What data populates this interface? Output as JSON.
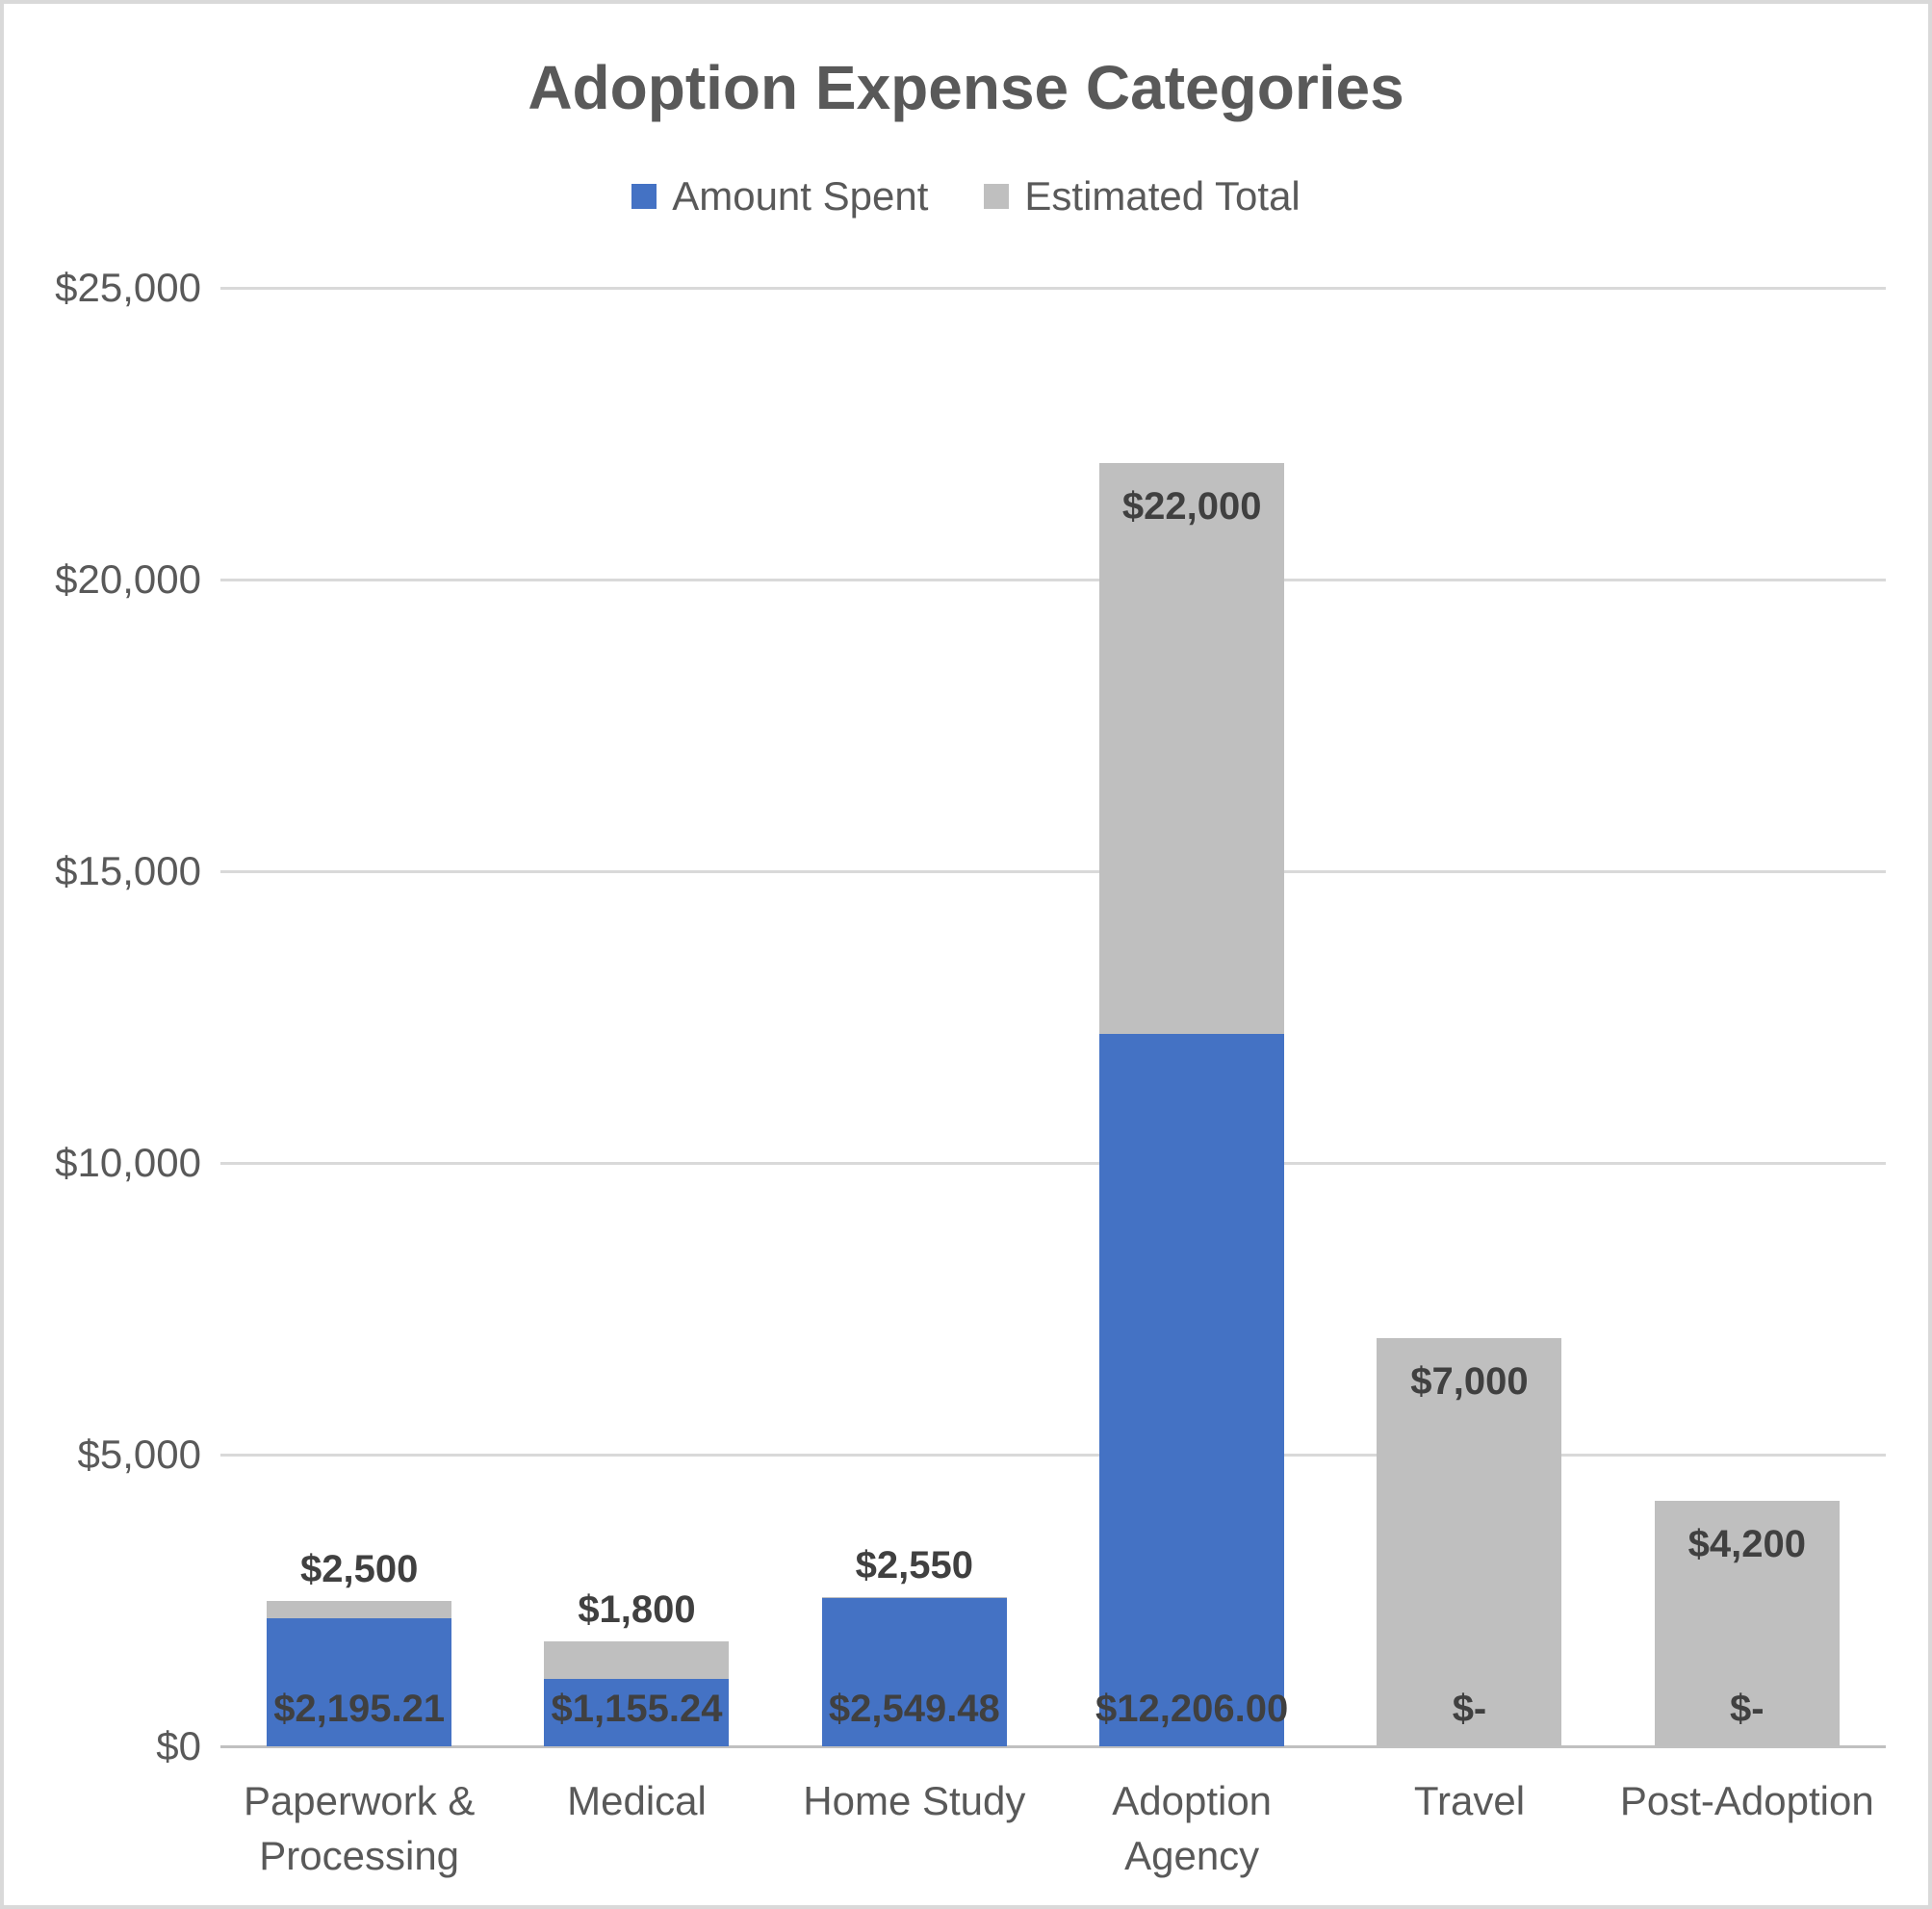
{
  "chart_data": {
    "type": "bar",
    "variant": "overlapped-columns",
    "title": "Adoption Expense Categories",
    "categories": [
      "Paperwork & Processing",
      "Medical",
      "Home Study",
      "Adoption Agency",
      "Travel",
      "Post-Adoption"
    ],
    "series": [
      {
        "name": "Amount Spent",
        "color": "#4472C4",
        "values": [
          2195.21,
          1155.24,
          2549.48,
          12206.0,
          0,
          0
        ],
        "data_labels": [
          "$2,195.21",
          "$1,155.24",
          "$2,549.48",
          "$12,206.00",
          "$-",
          "$-"
        ]
      },
      {
        "name": "Estimated Total",
        "color": "#BFBFBF",
        "values": [
          2500,
          1800,
          2550,
          22000,
          7000,
          4200
        ],
        "data_labels": [
          "$2,500",
          "$1,800",
          "$2,550",
          "$22,000",
          "$7,000",
          "$4,200"
        ]
      }
    ],
    "y_axis": {
      "min": 0,
      "max": 25000,
      "step": 5000,
      "tick_labels": [
        "$0",
        "$5,000",
        "$10,000",
        "$15,000",
        "$20,000",
        "$25,000"
      ]
    },
    "grid": true,
    "legend_position": "top",
    "colors": {
      "gridline": "#D9D9D9",
      "axis_line": "#C0C0C0",
      "chart_border": "#D9D9D9",
      "title_text": "#595959",
      "axis_text": "#595959",
      "data_label_text": "#404040",
      "background": "#FFFFFF"
    }
  }
}
